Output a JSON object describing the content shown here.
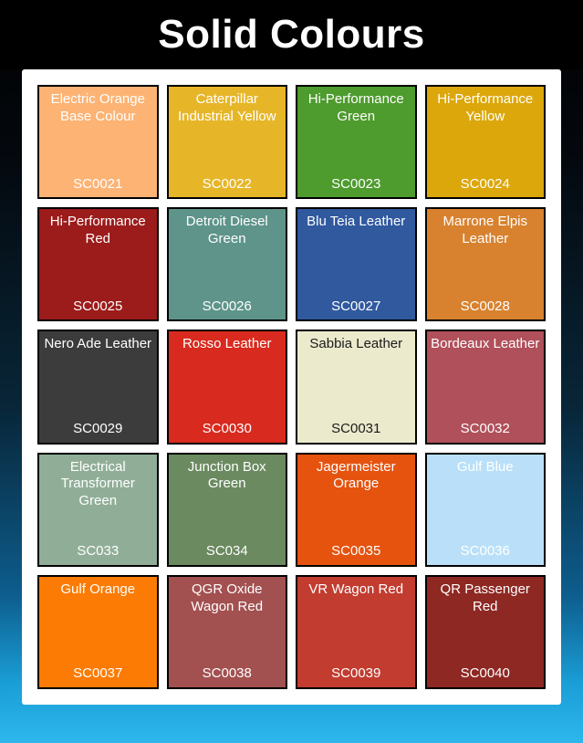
{
  "header": {
    "title": "Solid Colours"
  },
  "swatches": [
    {
      "name": "Electric Orange Base Colour",
      "code": "SC0021",
      "color": "#FCB374",
      "text_color": "#FFFFFF"
    },
    {
      "name": "Caterpillar Industrial Yellow",
      "code": "SC0022",
      "color": "#E6B628",
      "text_color": "#FFFFFF"
    },
    {
      "name": "Hi-Performance Green",
      "code": "SC0023",
      "color": "#4E9B2E",
      "text_color": "#FFFFFF"
    },
    {
      "name": "Hi-Performance Yellow",
      "code": "SC0024",
      "color": "#DCA70A",
      "text_color": "#FFFFFF"
    },
    {
      "name": "Hi-Performance Red",
      "code": "SC0025",
      "color": "#9C1B1B",
      "text_color": "#FFFFFF"
    },
    {
      "name": "Detroit Diesel Green",
      "code": "SC0026",
      "color": "#5E948A",
      "text_color": "#FFFFFF"
    },
    {
      "name": "Blu Teia Leather",
      "code": "SC0027",
      "color": "#30599E",
      "text_color": "#FFFFFF"
    },
    {
      "name": "Marrone Elpis Leather",
      "code": "SC0028",
      "color": "#D8822F",
      "text_color": "#FFFFFF"
    },
    {
      "name": "Nero Ade Leather",
      "code": "SC0029",
      "color": "#3C3C3C",
      "text_color": "#FFFFFF"
    },
    {
      "name": "Rosso Leather",
      "code": "SC0030",
      "color": "#D82A1E",
      "text_color": "#FFFFFF"
    },
    {
      "name": "Sabbia Leather",
      "code": "SC0031",
      "color": "#ECEACD",
      "text_color": "#1A1A1A"
    },
    {
      "name": "Bordeaux Leather",
      "code": "SC0032",
      "color": "#B0505A",
      "text_color": "#FFFFFF"
    },
    {
      "name": "Electrical Transformer Green",
      "code": "SC033",
      "color": "#90AE97",
      "text_color": "#FFFFFF"
    },
    {
      "name": "Junction Box Green",
      "code": "SC034",
      "color": "#6B8A60",
      "text_color": "#FFFFFF"
    },
    {
      "name": "Jagermeister Orange",
      "code": "SC0035",
      "color": "#E5530F",
      "text_color": "#FFFFFF"
    },
    {
      "name": "Gulf Blue",
      "code": "SC0036",
      "color": "#B9E0F8",
      "text_color": "#FFFFFF"
    },
    {
      "name": "Gulf Orange",
      "code": "SC0037",
      "color": "#FB7B04",
      "text_color": "#FFFFFF"
    },
    {
      "name": "QGR Oxide Wagon Red",
      "code": "SC0038",
      "color": "#A35050",
      "text_color": "#FFFFFF"
    },
    {
      "name": "VR Wagon Red",
      "code": "SC0039",
      "color": "#C23C30",
      "text_color": "#FFFFFF"
    },
    {
      "name": "QR Passenger Red",
      "code": "SC0040",
      "color": "#8E2823",
      "text_color": "#FFFFFF"
    }
  ]
}
